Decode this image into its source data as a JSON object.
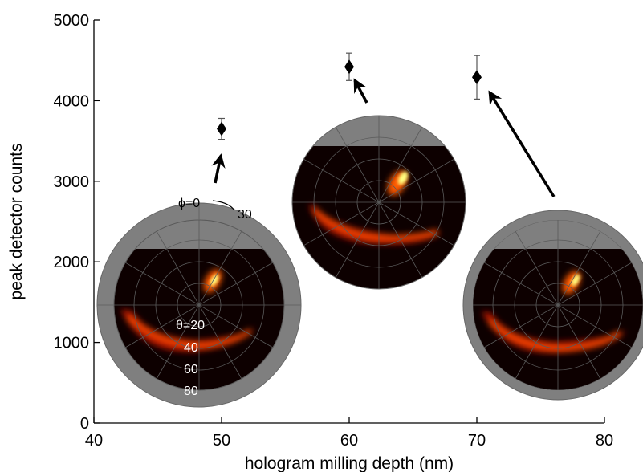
{
  "chart_data": {
    "type": "scatter",
    "title": "",
    "xlabel": "hologram milling depth (nm)",
    "ylabel": "peak detector counts",
    "xlim": [
      40,
      80
    ],
    "ylim": [
      0,
      5000
    ],
    "xticks": [
      40,
      50,
      60,
      70,
      80
    ],
    "yticks": [
      0,
      1000,
      2000,
      3000,
      4000,
      5000
    ],
    "grid": false,
    "marker": "diamond",
    "series": [
      {
        "points": [
          {
            "x": 50,
            "y": 3650,
            "err": 130
          },
          {
            "x": 60,
            "y": 4420,
            "err": 170
          },
          {
            "x": 70,
            "y": 4290,
            "err": 270
          }
        ]
      }
    ],
    "inset_annotations": {
      "phi": "ϕ=0",
      "phi_tick": "30",
      "theta": "θ=20",
      "theta_ticks": [
        "40",
        "60",
        "80"
      ]
    },
    "colors": {
      "axis": "#000000",
      "marker": "#000000",
      "inset_ring": "#7f7f7f",
      "inset_background": "#0d0000",
      "inset_grid": "#5a5a5a",
      "heat": "#ff3a00",
      "hot_spot": "#ffff80"
    }
  }
}
